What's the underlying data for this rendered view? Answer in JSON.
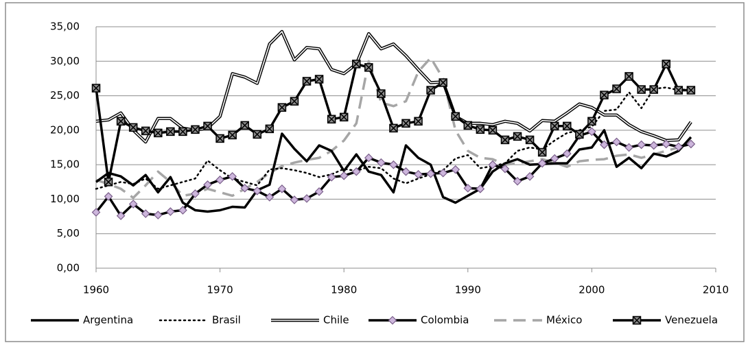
{
  "chart_data": {
    "type": "line",
    "x": [
      1960,
      1961,
      1962,
      1963,
      1964,
      1965,
      1966,
      1967,
      1968,
      1969,
      1970,
      1971,
      1972,
      1973,
      1974,
      1975,
      1976,
      1977,
      1978,
      1979,
      1980,
      1981,
      1982,
      1983,
      1984,
      1985,
      1986,
      1987,
      1988,
      1989,
      1990,
      1991,
      1992,
      1993,
      1994,
      1995,
      1996,
      1997,
      1998,
      1999,
      2000,
      2001,
      2002,
      2003,
      2004,
      2005,
      2006,
      2007,
      2008
    ],
    "xlim": [
      1960,
      2010
    ],
    "xticks": [
      1960,
      1970,
      1980,
      1990,
      2000,
      2010
    ],
    "ylim": [
      0,
      35
    ],
    "yticks": [
      {
        "value": 0,
        "label": "0,00"
      },
      {
        "value": 5,
        "label": "5,00"
      },
      {
        "value": 10,
        "label": "10,00"
      },
      {
        "value": 15,
        "label": "15,00"
      },
      {
        "value": 20,
        "label": "20,00"
      },
      {
        "value": 25,
        "label": "25,00"
      },
      {
        "value": 30,
        "label": "30,00"
      },
      {
        "value": 35,
        "label": "35,00"
      }
    ],
    "grid": true,
    "legend": "bottom",
    "series": [
      {
        "name": "Argentina",
        "color": "#000000",
        "dash": "solid",
        "marker": "none",
        "values": [
          12.5,
          13.8,
          13.3,
          12.0,
          13.5,
          11.0,
          13.2,
          9.5,
          8.4,
          8.2,
          8.4,
          8.9,
          8.8,
          11.3,
          12.1,
          19.5,
          17.3,
          15.5,
          17.8,
          17.0,
          14.1,
          16.5,
          14.0,
          13.5,
          11.0,
          17.8,
          16.0,
          15.0,
          10.3,
          9.5,
          10.5,
          11.5,
          14.0,
          15.2,
          15.8,
          15.0,
          15.1,
          15.2,
          15.2,
          17.2,
          17.5,
          20.0,
          14.7,
          16.0,
          14.5,
          16.6,
          16.2,
          17.0,
          19.0
        ]
      },
      {
        "name": "Brasil",
        "color": "#000000",
        "dash": "dotted",
        "marker": "none",
        "values": [
          11.5,
          12.0,
          12.5,
          12.2,
          13.0,
          11.5,
          12.0,
          12.5,
          13.0,
          15.6,
          14.2,
          13.0,
          12.5,
          12.0,
          14.3,
          14.5,
          14.2,
          13.8,
          13.2,
          13.6,
          14.4,
          14.1,
          14.7,
          14.5,
          13.0,
          12.3,
          13.0,
          13.6,
          14.2,
          15.9,
          16.4,
          14.5,
          14.8,
          15.2,
          17.0,
          17.5,
          17.2,
          18.5,
          19.6,
          20.0,
          20.5,
          22.8,
          23.0,
          25.5,
          23.2,
          26.0,
          26.2,
          25.8,
          26.0
        ]
      },
      {
        "name": "Chile",
        "color": "#000000",
        "dash": "double",
        "marker": "none",
        "values": [
          21.3,
          21.5,
          22.5,
          20.0,
          18.3,
          21.7,
          21.7,
          20.3,
          20.0,
          20.3,
          22.0,
          28.2,
          27.7,
          26.8,
          32.5,
          34.3,
          30.2,
          32.0,
          31.8,
          28.8,
          28.2,
          29.6,
          34.0,
          31.8,
          32.5,
          30.8,
          28.8,
          26.9,
          27.0,
          22.0,
          21.0,
          21.0,
          20.8,
          21.3,
          21.0,
          19.9,
          21.4,
          21.3,
          22.5,
          23.8,
          23.3,
          22.2,
          22.2,
          20.8,
          19.8,
          19.2,
          18.5,
          18.6,
          21.2
        ]
      },
      {
        "name": "Colombia",
        "color": "#000000",
        "dash": "solid",
        "marker": "diamond",
        "marker_color": "#cdb6dc",
        "values": [
          8.1,
          10.4,
          7.6,
          9.3,
          7.9,
          7.7,
          8.2,
          8.4,
          10.8,
          12.1,
          12.8,
          13.3,
          11.6,
          11.2,
          10.3,
          11.5,
          9.9,
          10.1,
          11.1,
          13.2,
          13.4,
          14.0,
          16.0,
          15.3,
          15.0,
          14.0,
          13.6,
          13.7,
          13.8,
          14.3,
          11.6,
          11.5,
          15.0,
          14.4,
          12.6,
          13.3,
          15.2,
          15.9,
          16.6,
          19.2,
          19.8,
          17.9,
          18.3,
          17.5,
          17.9,
          17.8,
          18.0,
          17.6,
          18.0
        ]
      },
      {
        "name": "México",
        "color": "#a6a6a6",
        "dash": "dashed",
        "marker": "none",
        "values": [
          12.8,
          12.2,
          11.5,
          10.2,
          12.0,
          14.0,
          12.5,
          10.5,
          10.8,
          11.5,
          11.0,
          10.5,
          11.5,
          12.5,
          13.8,
          14.8,
          15.3,
          15.7,
          16.0,
          17.0,
          18.5,
          21.0,
          30.0,
          24.0,
          23.5,
          24.2,
          28.5,
          30.5,
          27.5,
          20.0,
          17.0,
          16.0,
          15.8,
          15.0,
          15.2,
          15.5,
          15.8,
          15.3,
          14.7,
          15.5,
          15.7,
          15.8,
          16.3,
          16.5,
          16.0,
          16.5,
          17.0,
          17.5,
          18.0
        ]
      },
      {
        "name": "Venezuela",
        "color": "#000000",
        "dash": "solid",
        "marker": "square-x",
        "marker_color": "#8c8c8c",
        "values": [
          26.1,
          12.5,
          21.3,
          20.4,
          19.9,
          19.6,
          19.8,
          19.8,
          20.1,
          20.6,
          18.8,
          19.3,
          20.7,
          19.4,
          20.2,
          23.3,
          24.2,
          27.1,
          27.4,
          21.6,
          21.9,
          29.6,
          29.1,
          25.3,
          20.3,
          21.0,
          21.3,
          25.8,
          26.9,
          22.0,
          20.7,
          20.1,
          20.0,
          18.6,
          19.1,
          18.6,
          16.8,
          20.6,
          20.6,
          19.4,
          21.3,
          25.1,
          26.0,
          27.8,
          25.9,
          25.9,
          29.6,
          25.8,
          25.8
        ]
      }
    ]
  }
}
